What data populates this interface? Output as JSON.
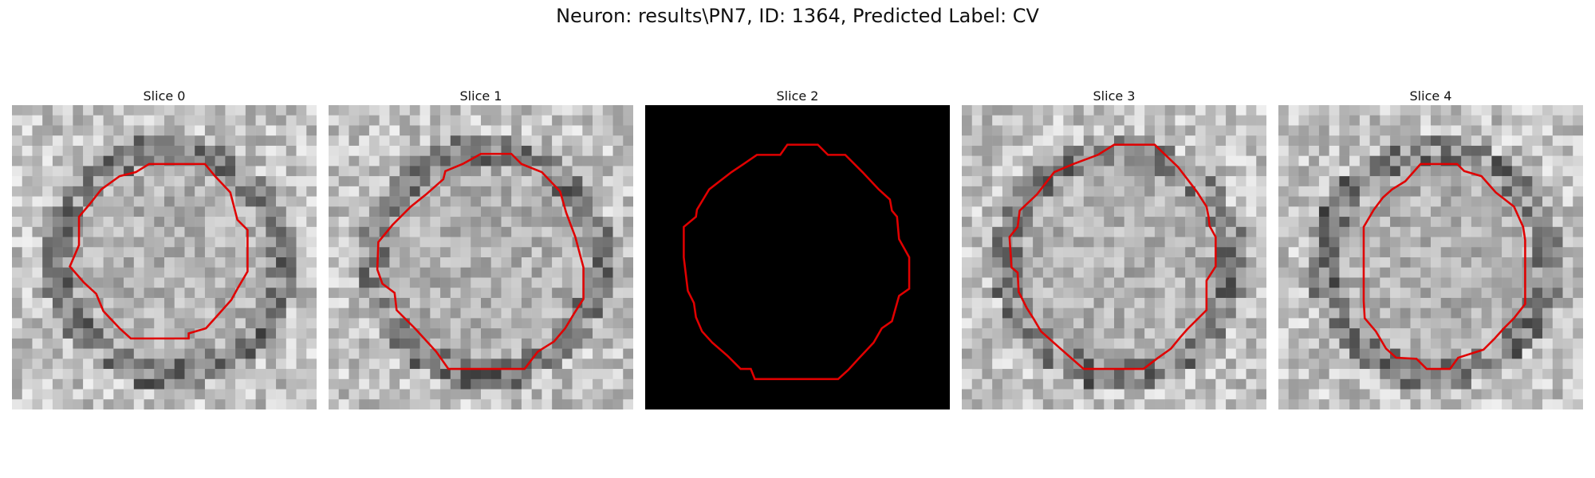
{
  "figure": {
    "title": "Neuron: results\\PN7, ID: 1364, Predicted Label: CV",
    "contour_color": "#e00000",
    "colormap": "gray",
    "panels": [
      {
        "label": "Slice 0"
      },
      {
        "label": "Slice 1"
      },
      {
        "label": "Slice 2"
      },
      {
        "label": "Slice 3"
      },
      {
        "label": "Slice 4"
      }
    ]
  }
}
